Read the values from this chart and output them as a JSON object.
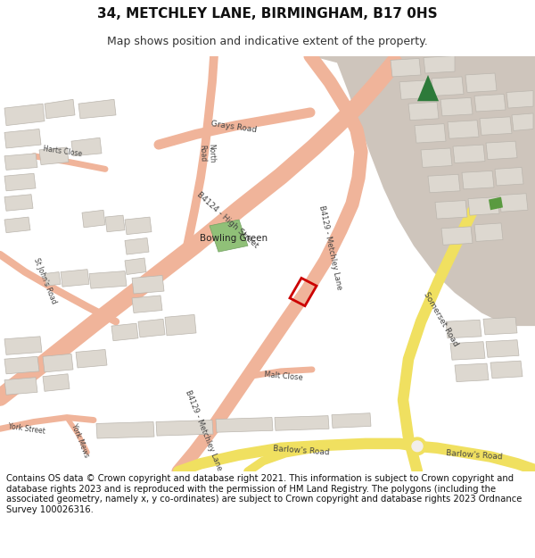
{
  "title": "34, METCHLEY LANE, BIRMINGHAM, B17 0HS",
  "subtitle": "Map shows position and indicative extent of the property.",
  "footer": "Contains OS data © Crown copyright and database right 2021. This information is subject to Crown copyright and database rights 2023 and is reproduced with the permission of HM Land Registry. The polygons (including the associated geometry, namely x, y co-ordinates) are subject to Crown copyright and database rights 2023 Ordnance Survey 100026316.",
  "bg_color": "#f2eeea",
  "road_pink": "#f0b49a",
  "road_yellow": "#f0e060",
  "road_yellow_edge": "#d8c840",
  "building_fill": "#ddd8d0",
  "building_edge": "#bbb6ae",
  "green_fill": "#90c078",
  "green_edge": "#70a060",
  "dk_green": "#2d7a3a",
  "lt_green": "#5a9a40",
  "property_color": "#cc0000",
  "tan_area": "#cec5bc",
  "label_color": "#444444",
  "title_fontsize": 11,
  "subtitle_fontsize": 9,
  "footer_fontsize": 7.2,
  "lw_main": 14,
  "lw_b4129": 11,
  "lw_minor": 7,
  "lw_yellow": 9
}
